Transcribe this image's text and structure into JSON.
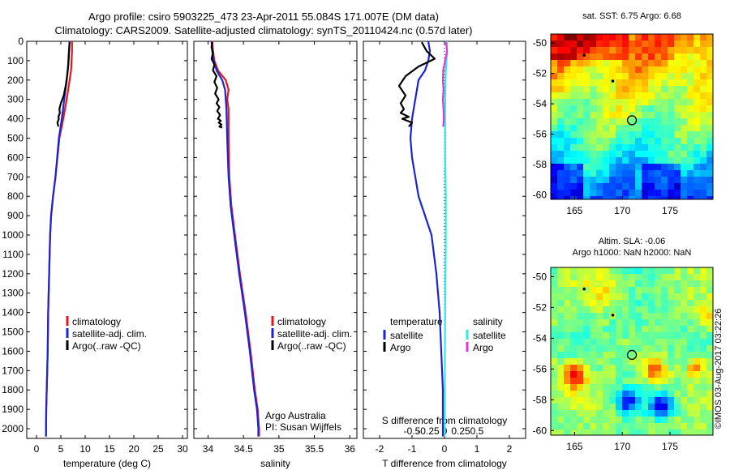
{
  "header": {
    "title_line1": "Argo profile: csiro 5903225_473 23-Apr-2011 55.084S 171.007E (DM data)",
    "title_line2": "Climatology: CARS2009. Satellite-adjusted climatology: synTS_20110424.nc (0.57d later)"
  },
  "colors": {
    "climatology": "#e8141a",
    "satellite": "#1a24d6",
    "argo": "#000000",
    "salinity_satellite": "#33e8e8",
    "salinity_argo": "#e03ad6"
  },
  "depth_axis": {
    "ticks": [
      0,
      100,
      200,
      300,
      400,
      500,
      600,
      700,
      800,
      900,
      1000,
      1100,
      1200,
      1300,
      1400,
      1500,
      1600,
      1700,
      1800,
      1900,
      2000
    ],
    "range": [
      0,
      2050
    ]
  },
  "chart_data": [
    {
      "type": "line",
      "id": "temperature",
      "xlabel": "temperature (deg C)",
      "xlim": [
        -2,
        31
      ],
      "xticks": [
        0,
        5,
        10,
        15,
        20,
        25,
        30
      ],
      "ylim": [
        0,
        2050
      ],
      "legend": {
        "placement": "lower-middle",
        "entries": [
          "climatology",
          "satellite-adj. clim.",
          "Argo(..raw -QC)"
        ]
      },
      "series": [
        {
          "name": "climatology",
          "color_key": "climatology",
          "x": [
            7.3,
            7.3,
            7.2,
            7.1,
            6.8,
            6.2,
            5.5,
            4.7,
            3.9,
            3.4,
            3.0,
            2.8,
            2.6,
            2.4,
            2.3,
            2.2,
            2.1,
            2.0,
            1.95
          ],
          "y": [
            0,
            50,
            100,
            150,
            200,
            300,
            400,
            500,
            700,
            800,
            900,
            1000,
            1200,
            1400,
            1600,
            1700,
            1800,
            1900,
            2040
          ]
        },
        {
          "name": "satellite-adj. clim.",
          "color_key": "satellite",
          "x": [
            6.8,
            6.7,
            6.6,
            6.4,
            6.2,
            5.7,
            5.2,
            4.6,
            3.9,
            3.4,
            3.0,
            2.8,
            2.6,
            2.4,
            2.3,
            2.2,
            2.1,
            2.0,
            1.95
          ],
          "y": [
            0,
            50,
            100,
            150,
            200,
            300,
            400,
            500,
            700,
            800,
            900,
            1000,
            1200,
            1400,
            1600,
            1700,
            1800,
            1900,
            2040
          ]
        },
        {
          "name": "Argo(..raw -QC)",
          "color_key": "argo",
          "x": [
            6.8,
            6.7,
            6.6,
            6.5,
            6.3,
            6.0,
            5.6,
            5.0,
            4.7,
            4.8,
            4.5,
            4.6,
            4.3,
            4.5
          ],
          "y": [
            5,
            40,
            80,
            130,
            180,
            230,
            280,
            320,
            350,
            370,
            390,
            400,
            420,
            440
          ]
        }
      ]
    },
    {
      "type": "line",
      "id": "salinity",
      "xlabel": "salinity",
      "xlim": [
        33.8,
        36.1
      ],
      "xticks": [
        34,
        34.5,
        35,
        35.5,
        36
      ],
      "ylim": [
        0,
        2050
      ],
      "legend": {
        "placement": "lower-middle",
        "entries": [
          "climatology",
          "satellite-adj. clim.",
          "Argo(..raw -QC)"
        ]
      },
      "annotation": [
        "Argo Australia",
        "PI: Susan Wijffels"
      ],
      "series": [
        {
          "name": "climatology",
          "color_key": "climatology",
          "x": [
            34.06,
            34.07,
            34.09,
            34.14,
            34.25,
            34.29,
            34.27,
            34.29,
            34.29,
            34.3,
            34.33,
            34.38,
            34.45,
            34.53,
            34.6,
            34.66,
            34.7,
            34.71,
            34.72,
            34.72
          ],
          "y": [
            0,
            50,
            100,
            150,
            200,
            250,
            300,
            350,
            500,
            700,
            850,
            1000,
            1200,
            1400,
            1600,
            1800,
            1900,
            1950,
            2000,
            2040
          ]
        },
        {
          "name": "satellite-adj. clim.",
          "color_key": "satellite",
          "x": [
            34.05,
            34.06,
            34.08,
            34.12,
            34.2,
            34.24,
            34.25,
            34.26,
            34.27,
            34.29,
            34.32,
            34.37,
            34.44,
            34.52,
            34.59,
            34.65,
            34.69,
            34.7,
            34.71,
            34.71
          ],
          "y": [
            0,
            50,
            100,
            150,
            200,
            250,
            300,
            350,
            500,
            700,
            850,
            1000,
            1200,
            1400,
            1600,
            1800,
            1900,
            1950,
            2000,
            2040
          ]
        },
        {
          "name": "Argo(..raw -QC)",
          "color_key": "argo",
          "x": [
            34.06,
            34.05,
            34.07,
            34.05,
            34.09,
            34.07,
            34.12,
            34.09,
            34.13,
            34.1,
            34.15,
            34.12,
            34.16,
            34.13,
            34.17,
            34.14,
            34.18,
            34.15,
            34.19,
            34.16,
            34.2
          ],
          "y": [
            5,
            30,
            60,
            90,
            120,
            150,
            180,
            210,
            240,
            270,
            300,
            320,
            340,
            360,
            380,
            400,
            410,
            420,
            430,
            440,
            445
          ]
        }
      ]
    },
    {
      "type": "line",
      "id": "difference",
      "xlabel": "T difference from climatology",
      "xlabel_top": "S difference from climatology",
      "xlim": [
        -2.5,
        2.5
      ],
      "xticks": [
        -2,
        -1,
        0,
        1,
        2
      ],
      "xticks_top": [
        "-0.5",
        "-0.25",
        "0",
        "0.25",
        "0.5"
      ],
      "ylim": [
        0,
        2050
      ],
      "legend": {
        "placement": "lower-middle",
        "temperature_title": "temperature",
        "salinity_title": "salinity",
        "entries_t": [
          "satellite",
          "Argo"
        ],
        "entries_s": [
          "satellite",
          "Argo"
        ]
      },
      "series": [
        {
          "name": "T satellite",
          "color_key": "satellite",
          "x": [
            -0.5,
            -0.45,
            -0.5,
            -0.6,
            -0.8,
            -0.9,
            -1.0,
            -1.05,
            -1.0,
            -0.9,
            -0.8,
            -0.6,
            -0.4,
            -0.25,
            -0.15,
            -0.1,
            -0.05,
            -0.05,
            -0.05
          ],
          "y": [
            0,
            50,
            100,
            150,
            200,
            300,
            400,
            500,
            600,
            700,
            800,
            900,
            1000,
            1200,
            1400,
            1600,
            1800,
            1900,
            2040
          ]
        },
        {
          "name": "T Argo",
          "color_key": "argo",
          "x": [
            -0.7,
            -0.55,
            -0.3,
            -0.8,
            -1.2,
            -1.4,
            -1.2,
            -1.35,
            -1.25,
            -1.35,
            -1.1,
            -1.3,
            -1.0,
            -1.1
          ],
          "y": [
            5,
            50,
            90,
            130,
            180,
            230,
            280,
            320,
            350,
            370,
            390,
            400,
            420,
            440
          ]
        },
        {
          "name": "S satellite",
          "color_key": "salinity_satellite",
          "x": [
            0.07,
            0.08,
            0.06,
            0.04,
            0.03,
            0.02,
            0.02,
            0.02,
            0.02,
            0.03,
            0.04,
            0.04,
            0.04,
            0.03,
            0.02,
            0.01,
            0.01
          ],
          "y": [
            0,
            50,
            100,
            150,
            200,
            300,
            400,
            500,
            600,
            700,
            800,
            900,
            1000,
            1200,
            1400,
            1700,
            2040
          ]
        },
        {
          "name": "S Argo",
          "color_key": "salinity_argo",
          "x": [
            0.05,
            0.08,
            0.02,
            -0.04,
            -0.05,
            -0.03,
            -0.05,
            -0.03,
            -0.02,
            -0.04
          ],
          "y": [
            5,
            50,
            100,
            150,
            200,
            250,
            300,
            350,
            400,
            440
          ]
        }
      ]
    },
    {
      "type": "heatmap",
      "id": "sst_map",
      "title": "sat. SST: 6.75 Argo: 6.68",
      "xticks": [
        165,
        170,
        175
      ],
      "yticks": [
        -50,
        -52,
        -54,
        -56,
        -58,
        -60
      ],
      "xlim": [
        162.5,
        179.5
      ],
      "ylim": [
        -60.3,
        -49.4
      ],
      "profile_location": {
        "lon": 171.007,
        "lat": -55.084
      },
      "other_points": [
        {
          "lon": 166,
          "lat": -50.8
        },
        {
          "lon": 169,
          "lat": -52.5
        }
      ]
    },
    {
      "type": "heatmap",
      "id": "sla_map",
      "title_line1": "Altim. SLA: -0.06",
      "title_line2": "Argo h1000: NaN h2000: NaN",
      "xticks": [
        165,
        170,
        175
      ],
      "yticks": [
        -50,
        -52,
        -54,
        -56,
        -58,
        -60
      ],
      "xlim": [
        162.5,
        179.5
      ],
      "ylim": [
        -60.3,
        -49.4
      ],
      "profile_location": {
        "lon": 171.007,
        "lat": -55.084
      },
      "other_points": [
        {
          "lon": 166,
          "lat": -50.8
        },
        {
          "lon": 169,
          "lat": -52.5
        }
      ]
    }
  ],
  "footer": {
    "credit": "©IMOS 03-Aug-2017 03:22:26"
  }
}
